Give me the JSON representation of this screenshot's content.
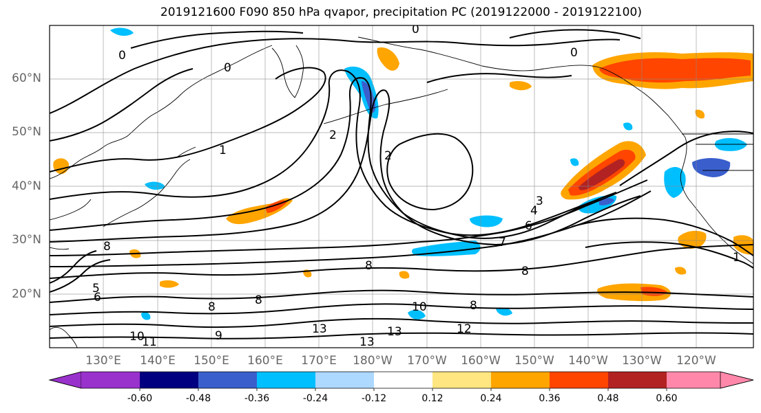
{
  "title": "2019121600 F090 850 hPa qvapor, precipitation PC (2019122000 - 2019122100)",
  "map": {
    "lat_labels": [
      "60°N",
      "50°N",
      "40°N",
      "30°N",
      "20°N"
    ],
    "lat_values": [
      60,
      50,
      40,
      30,
      20
    ],
    "lon_labels": [
      "130°E",
      "140°E",
      "150°E",
      "160°E",
      "170°E",
      "180°W",
      "170°W",
      "160°W",
      "150°W",
      "140°W",
      "130°W",
      "120°W"
    ],
    "lon_values": [
      130,
      140,
      150,
      160,
      170,
      180,
      190,
      200,
      210,
      220,
      230,
      240
    ],
    "lat_range": [
      10,
      70
    ],
    "lon_range": [
      120,
      251
    ],
    "grid": true,
    "contour_field": "850 hPa qvapor",
    "contour_levels": [
      0,
      1,
      2,
      3,
      4,
      5,
      6,
      7,
      8,
      9,
      10,
      11,
      12,
      13
    ],
    "contour_labels": [
      "0",
      "0",
      "0",
      "0",
      "1",
      "2",
      "2",
      "3",
      "4",
      "6",
      "7",
      "8",
      "8",
      "8",
      "8",
      "6",
      "8",
      "9",
      "10",
      "11",
      "13",
      "13",
      "12",
      "13",
      "10",
      "8",
      "5",
      "1"
    ],
    "shaded_field": "precipitation PC",
    "shading_colors": {
      "strong_positive": "#ff4500",
      "positive": "#ffa500",
      "weak_positive": "#ffe680",
      "max_positive": "#b22222",
      "weak_negative": "#add8ff",
      "negative": "#00bfff",
      "strong_negative": "#3a5fcd",
      "max_negative": "#000080"
    }
  },
  "colorbar": {
    "tick_labels": [
      "-0.60",
      "-0.48",
      "-0.36",
      "-0.24",
      "-0.12",
      "0.12",
      "0.24",
      "0.36",
      "0.48",
      "0.60"
    ],
    "tick_values": [
      -0.6,
      -0.48,
      -0.36,
      -0.24,
      -0.12,
      0.12,
      0.24,
      0.36,
      0.48,
      0.6
    ],
    "colors": [
      "#9932cc",
      "#000080",
      "#3a5fcd",
      "#00bfff",
      "#add8ff",
      "#ffffff",
      "#ffe680",
      "#ffa500",
      "#ff4500",
      "#b22222",
      "#ff88aa"
    ],
    "extend": "both"
  }
}
